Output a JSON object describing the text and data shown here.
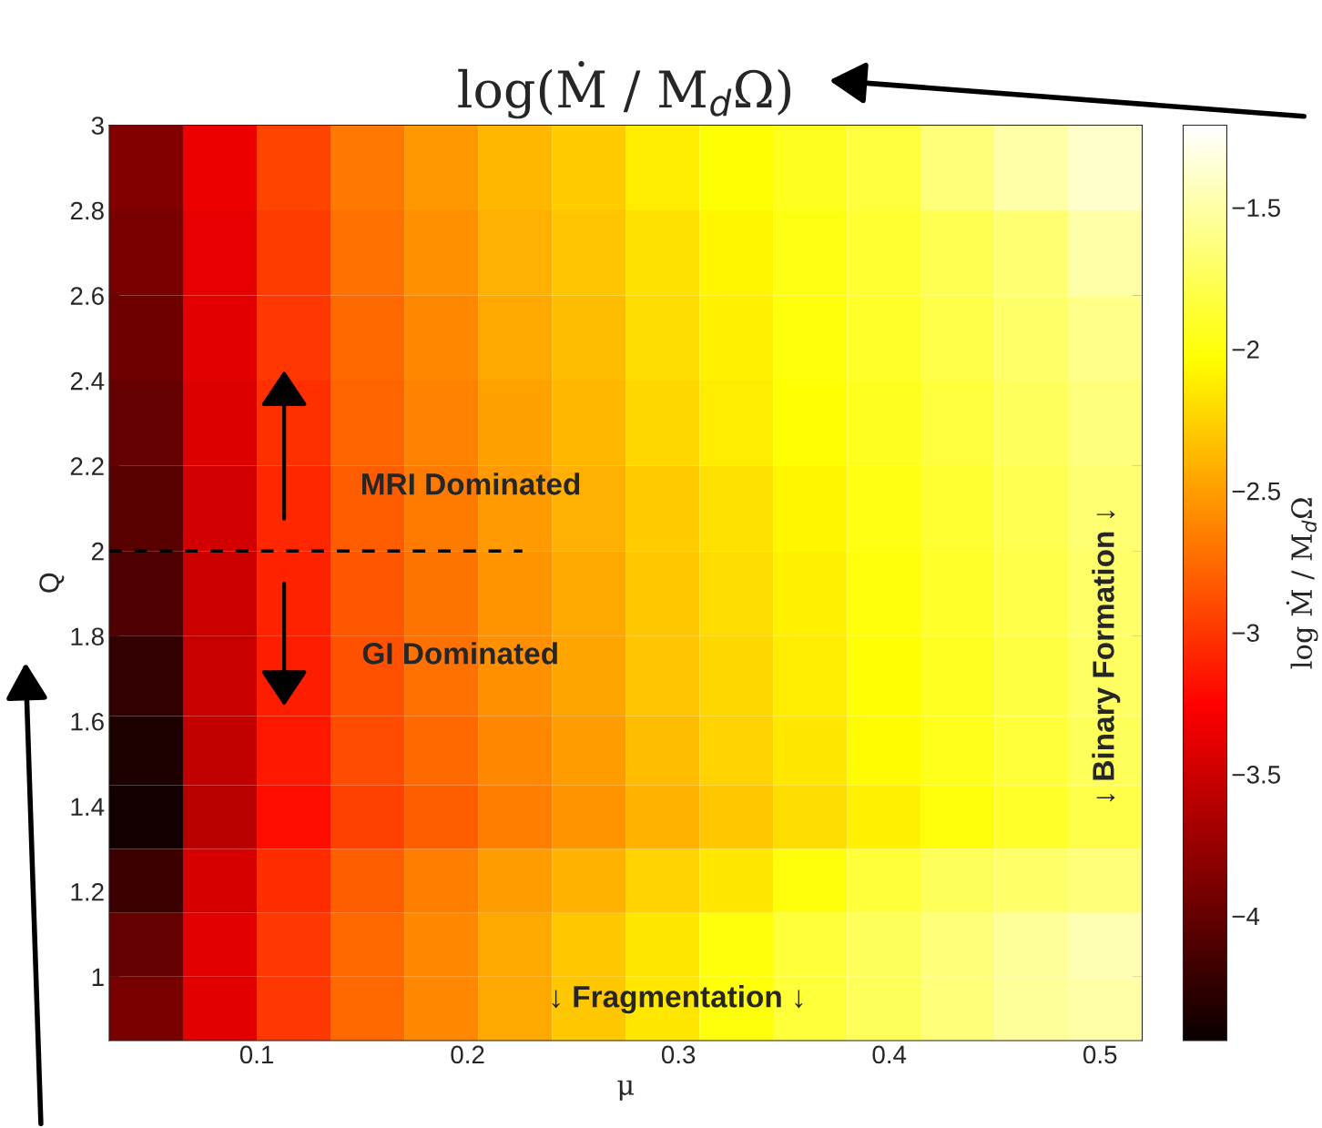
{
  "chart_data": {
    "type": "heatmap",
    "title": "log(Ṁ / M$_{d}$Ω)",
    "xlabel": "μ",
    "ylabel": "Q",
    "clabel": "log Ṁ / M$_{d}$Ω",
    "x": [
      0.0475,
      0.0825,
      0.1175,
      0.1525,
      0.1875,
      0.2225,
      0.2575,
      0.2925,
      0.3275,
      0.3625,
      0.3975,
      0.4325,
      0.4675,
      0.5025
    ],
    "y": [
      2.9,
      2.7,
      2.5,
      2.3,
      2.1,
      1.9,
      1.7,
      1.525,
      1.375,
      1.225,
      1.075,
      0.925
    ],
    "cells": [
      [
        -3.85,
        -3.33,
        -2.93,
        -2.68,
        -2.53,
        -2.38,
        -2.28,
        -2.13,
        -2.03,
        -1.93,
        -1.83,
        -1.65,
        -1.5,
        -1.38
      ],
      [
        -3.9,
        -3.37,
        -2.97,
        -2.72,
        -2.57,
        -2.42,
        -2.32,
        -2.17,
        -2.07,
        -1.97,
        -1.87,
        -1.77,
        -1.67,
        -1.5
      ],
      [
        -3.95,
        -3.4,
        -3.0,
        -2.75,
        -2.6,
        -2.45,
        -2.35,
        -2.2,
        -2.1,
        -2.0,
        -1.9,
        -1.8,
        -1.7,
        -1.6
      ],
      [
        -4.0,
        -3.43,
        -3.03,
        -2.78,
        -2.63,
        -2.48,
        -2.38,
        -2.23,
        -2.13,
        -2.03,
        -1.93,
        -1.83,
        -1.73,
        -1.63
      ],
      [
        -4.05,
        -3.47,
        -3.07,
        -2.82,
        -2.67,
        -2.52,
        -2.42,
        -2.27,
        -2.17,
        -2.07,
        -1.97,
        -1.87,
        -1.77,
        -1.67
      ],
      [
        -4.1,
        -3.5,
        -3.1,
        -2.85,
        -2.7,
        -2.55,
        -2.45,
        -2.3,
        -2.2,
        -2.1,
        -2.0,
        -1.9,
        -1.8,
        -1.7
      ],
      [
        -4.25,
        -3.52,
        -3.12,
        -2.87,
        -2.72,
        -2.57,
        -2.47,
        -2.32,
        -2.22,
        -2.12,
        -2.02,
        -1.92,
        -1.82,
        -1.72
      ],
      [
        -4.35,
        -3.55,
        -3.15,
        -2.9,
        -2.75,
        -2.6,
        -2.5,
        -2.35,
        -2.25,
        -2.15,
        -2.05,
        -1.95,
        -1.85,
        -1.75
      ],
      [
        -4.4,
        -3.6,
        -3.2,
        -2.95,
        -2.8,
        -2.65,
        -2.55,
        -2.4,
        -2.3,
        -2.2,
        -2.1,
        -2.0,
        -1.9,
        -1.8
      ],
      [
        -4.2,
        -3.45,
        -3.05,
        -2.8,
        -2.65,
        -2.5,
        -2.4,
        -2.25,
        -2.15,
        -2.0,
        -1.85,
        -1.75,
        -1.7,
        -1.65
      ],
      [
        -4.0,
        -3.4,
        -3.0,
        -2.75,
        -2.6,
        -2.45,
        -2.3,
        -2.15,
        -2.0,
        -1.85,
        -1.75,
        -1.65,
        -1.55,
        -1.45
      ],
      [
        -3.9,
        -3.4,
        -3.0,
        -2.75,
        -2.6,
        -2.45,
        -2.3,
        -2.15,
        -2.0,
        -1.85,
        -1.75,
        -1.65,
        -1.55,
        -1.5
      ]
    ],
    "xlim": [
      0.03,
      0.52
    ],
    "ylim": [
      0.85,
      3
    ],
    "xticks": [
      0.1,
      0.2,
      0.3,
      0.4,
      0.5
    ],
    "yticks": [
      1,
      1.2,
      1.4,
      1.6,
      1.8,
      2,
      2.2,
      2.4,
      2.6,
      2.8,
      3
    ],
    "clim": [
      -4.44,
      -1.21
    ],
    "cticks": [
      {
        "value": -4,
        "label": "−4"
      },
      {
        "value": -3.5,
        "label": "−3.5"
      },
      {
        "value": -3,
        "label": "−3"
      },
      {
        "value": -2.5,
        "label": "−2.5"
      },
      {
        "value": -2,
        "label": "−2"
      },
      {
        "value": -1.5,
        "label": "−1.5"
      }
    ],
    "ref_lines": [
      {
        "axis": "y",
        "value": 2,
        "color": "#000000",
        "line_style": "dashed"
      }
    ],
    "annotations": [
      "MRI Dominated",
      "GI Dominated",
      "↓ Fragmentation ↓",
      "↓ Binary Formation ↓"
    ],
    "grid": false
  }
}
